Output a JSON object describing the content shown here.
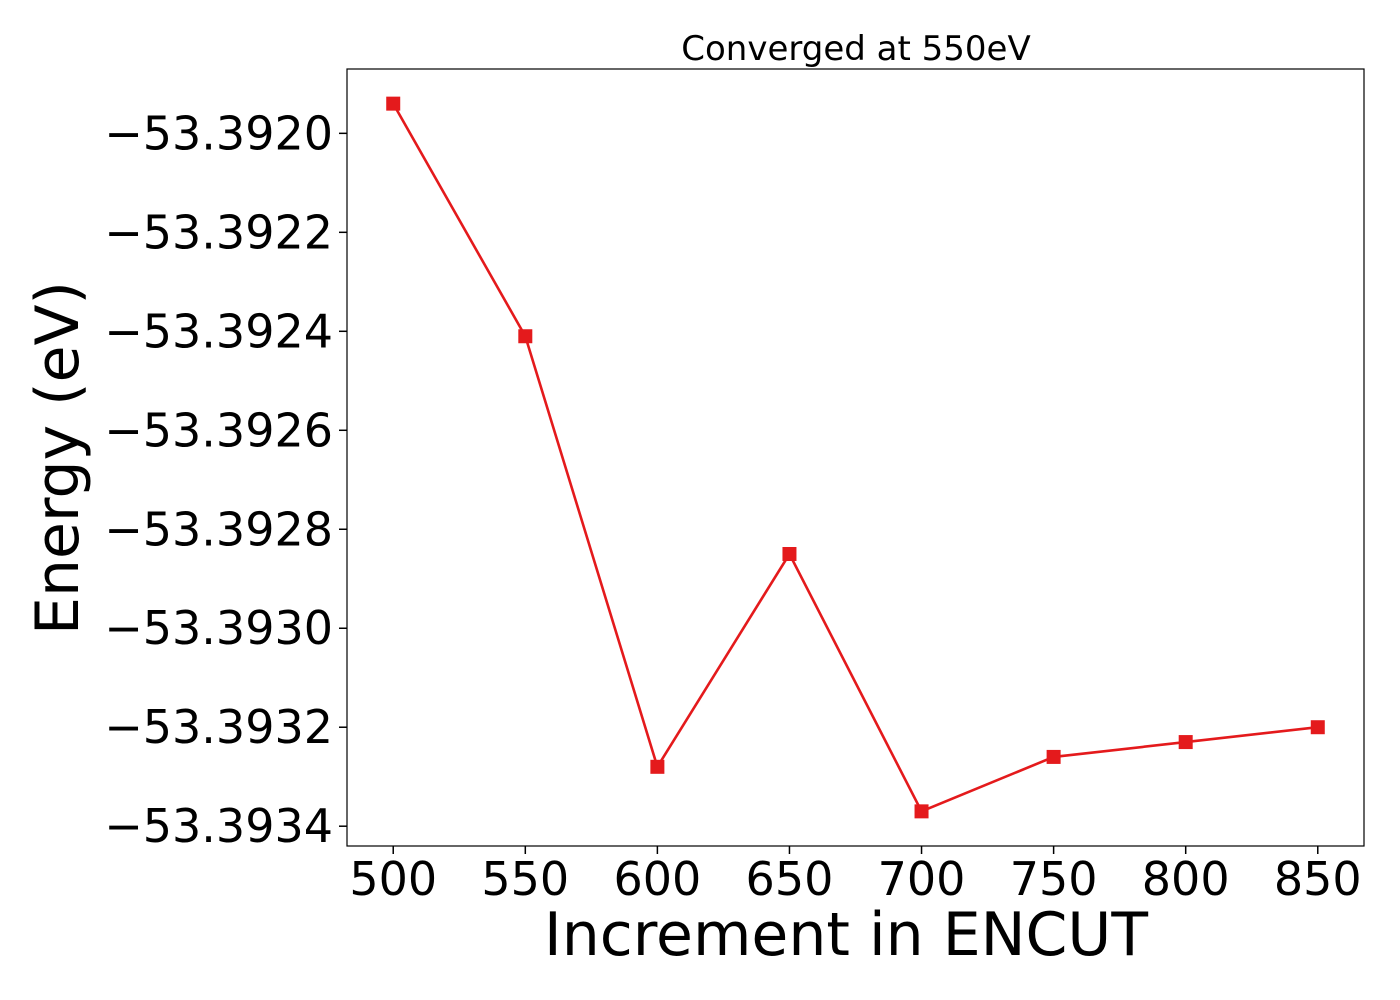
{
  "chart_data": {
    "type": "line",
    "title": "Converged at 550eV",
    "xlabel": "Increment in ENCUT",
    "ylabel": "Energy (eV)",
    "x": [
      500,
      550,
      600,
      650,
      700,
      750,
      800,
      850
    ],
    "series": [
      {
        "values": [
          -53.39194,
          -53.39241,
          -53.39328,
          -53.39285,
          -53.39337,
          -53.39326,
          -53.39323,
          -53.3932
        ]
      }
    ],
    "x_ticks": [
      500,
      550,
      600,
      650,
      700,
      750,
      800,
      850
    ],
    "x_tick_labels": [
      "500",
      "550",
      "600",
      "650",
      "700",
      "750",
      "800",
      "850"
    ],
    "y_ticks": [
      -53.392,
      -53.3922,
      -53.3924,
      -53.3926,
      -53.3928,
      -53.393,
      -53.3932,
      -53.3934
    ],
    "y_tick_labels": [
      "−53.3920",
      "−53.3922",
      "−53.3924",
      "−53.3926",
      "−53.3928",
      "−53.3930",
      "−53.3932",
      "−53.3934"
    ],
    "xlim": [
      482.5,
      867.5
    ],
    "ylim": [
      -53.39344,
      -53.39187
    ],
    "marker": "square",
    "color": "#e41a1c",
    "grid": false,
    "legend": "none"
  }
}
